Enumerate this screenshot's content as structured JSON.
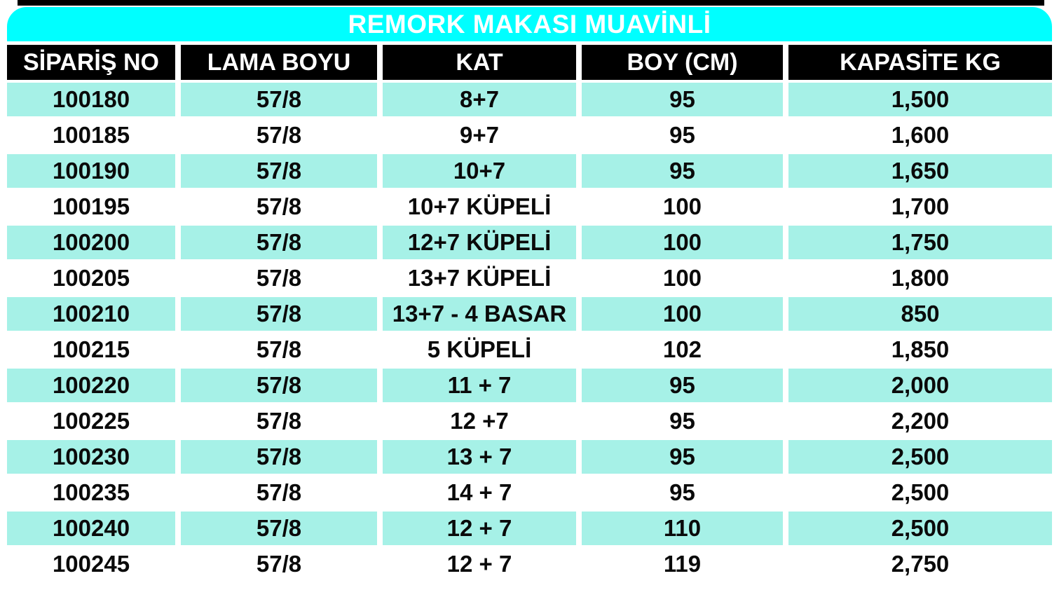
{
  "title": "REMORK MAKASI MUAVİNLİ",
  "table": {
    "headers": [
      "SİPARİŞ NO",
      "LAMA BOYU",
      "KAT",
      "BOY (CM)",
      "KAPASİTE KG"
    ],
    "rows": [
      [
        "100180",
        "57/8",
        "8+7",
        "95",
        "1,500"
      ],
      [
        "100185",
        "57/8",
        "9+7",
        "95",
        "1,600"
      ],
      [
        "100190",
        "57/8",
        "10+7",
        "95",
        "1,650"
      ],
      [
        "100195",
        "57/8",
        "10+7 KÜPELİ",
        "100",
        "1,700"
      ],
      [
        "100200",
        "57/8",
        "12+7 KÜPELİ",
        "100",
        "1,750"
      ],
      [
        "100205",
        "57/8",
        "13+7 KÜPELİ",
        "100",
        "1,800"
      ],
      [
        "100210",
        "57/8",
        "13+7 - 4 BASAR",
        "100",
        "850"
      ],
      [
        "100215",
        "57/8",
        "5 KÜPELİ",
        "102",
        "1,850"
      ],
      [
        "100220",
        "57/8",
        "11 + 7",
        "95",
        "2,000"
      ],
      [
        "100225",
        "57/8",
        "12 +7",
        "95",
        "2,200"
      ],
      [
        "100230",
        "57/8",
        "13 + 7",
        "95",
        "2,500"
      ],
      [
        "100235",
        "57/8",
        "14 + 7",
        "95",
        "2,500"
      ],
      [
        "100240",
        "57/8",
        "12 + 7",
        "110",
        "2,500"
      ],
      [
        "100245",
        "57/8",
        "12 + 7",
        "119",
        "2,750"
      ]
    ]
  },
  "colors": {
    "title_bg": "#00ffff",
    "title_text": "#ffffff",
    "header_bg": "#000000",
    "header_text": "#ffffff",
    "row_highlight": "#a6f1e7",
    "row_alt": "#ffffff",
    "body_text": "#0a0a0a"
  }
}
